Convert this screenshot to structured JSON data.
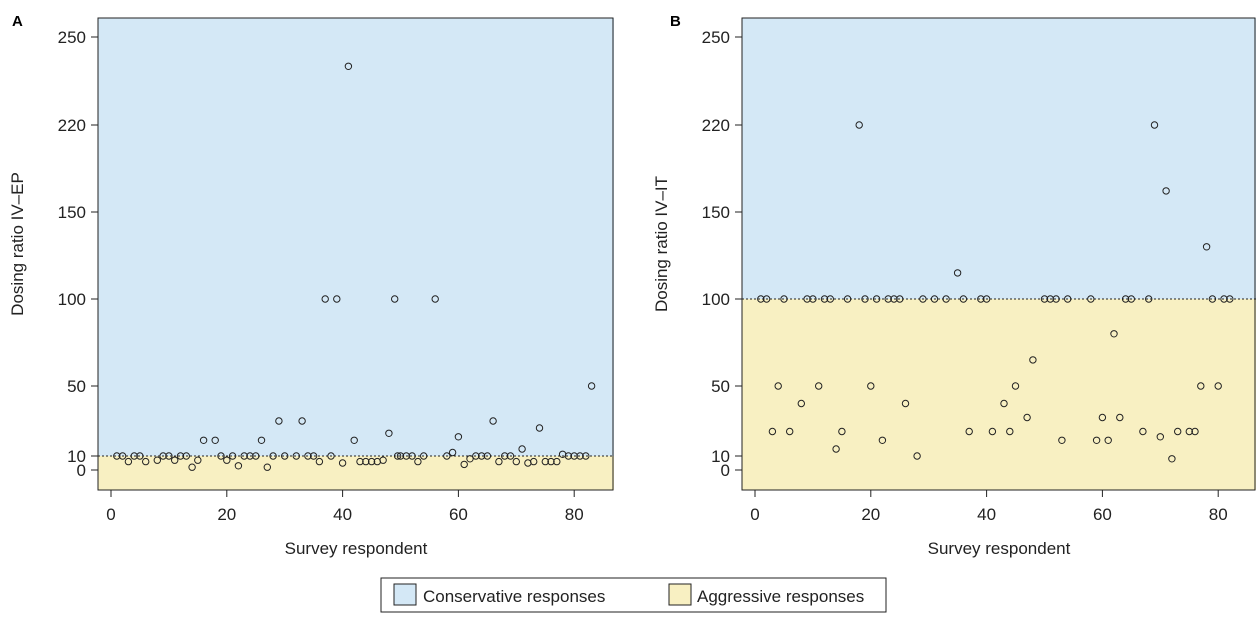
{
  "colors": {
    "conservative": "#d4e8f6",
    "aggressive": "#f8f0c2",
    "marker_stroke": "#222222",
    "axis": "#222222"
  },
  "legend": {
    "conservative_label": "Conservative responses",
    "aggressive_label": "Aggressive responses",
    "placement": "bottom-center"
  },
  "chart_data": [
    {
      "type": "scatter",
      "panel_label": "A",
      "xlabel": "Survey respondent",
      "ylabel": "Dosing ratio IV–EP",
      "xlim": [
        0,
        87
      ],
      "xticks": [
        "0",
        "20",
        "40",
        "60",
        "80"
      ],
      "yticks": [
        "0",
        "10",
        "50",
        "100",
        "150",
        "220",
        "250"
      ],
      "scale_note": "y axis is non-linear: ticks 0, 10, 50, 100, 150, 220, 250",
      "threshold": 10,
      "conservative_region": "above threshold",
      "aggressive_region": "below threshold",
      "points": [
        {
          "x": 1,
          "y": 10
        },
        {
          "x": 2,
          "y": 10
        },
        {
          "x": 3,
          "y": 6
        },
        {
          "x": 4,
          "y": 10
        },
        {
          "x": 5,
          "y": 10
        },
        {
          "x": 6,
          "y": 6
        },
        {
          "x": 8,
          "y": 7
        },
        {
          "x": 9,
          "y": 10
        },
        {
          "x": 10,
          "y": 10
        },
        {
          "x": 11,
          "y": 7
        },
        {
          "x": 12,
          "y": 10
        },
        {
          "x": 13,
          "y": 10
        },
        {
          "x": 14,
          "y": 2
        },
        {
          "x": 15,
          "y": 7
        },
        {
          "x": 16,
          "y": 19
        },
        {
          "x": 18,
          "y": 19
        },
        {
          "x": 19,
          "y": 10
        },
        {
          "x": 20,
          "y": 7
        },
        {
          "x": 21,
          "y": 10
        },
        {
          "x": 22,
          "y": 3
        },
        {
          "x": 23,
          "y": 10
        },
        {
          "x": 24,
          "y": 10
        },
        {
          "x": 25,
          "y": 10
        },
        {
          "x": 26,
          "y": 19
        },
        {
          "x": 27,
          "y": 2
        },
        {
          "x": 28,
          "y": 10
        },
        {
          "x": 29,
          "y": 30
        },
        {
          "x": 30,
          "y": 10
        },
        {
          "x": 32,
          "y": 10
        },
        {
          "x": 33,
          "y": 30
        },
        {
          "x": 34,
          "y": 10
        },
        {
          "x": 35,
          "y": 10
        },
        {
          "x": 36,
          "y": 6
        },
        {
          "x": 37,
          "y": 100
        },
        {
          "x": 38,
          "y": 10
        },
        {
          "x": 39,
          "y": 100
        },
        {
          "x": 40,
          "y": 5
        },
        {
          "x": 41,
          "y": 240
        },
        {
          "x": 42,
          "y": 19
        },
        {
          "x": 43,
          "y": 6
        },
        {
          "x": 44,
          "y": 6
        },
        {
          "x": 45,
          "y": 6
        },
        {
          "x": 46,
          "y": 6
        },
        {
          "x": 47,
          "y": 7
        },
        {
          "x": 48,
          "y": 23
        },
        {
          "x": 49,
          "y": 100
        },
        {
          "x": 49.5,
          "y": 10
        },
        {
          "x": 50,
          "y": 10
        },
        {
          "x": 51,
          "y": 10
        },
        {
          "x": 52,
          "y": 10
        },
        {
          "x": 53,
          "y": 6
        },
        {
          "x": 54,
          "y": 10
        },
        {
          "x": 56,
          "y": 100
        },
        {
          "x": 58,
          "y": 10
        },
        {
          "x": 59,
          "y": 12
        },
        {
          "x": 60,
          "y": 21
        },
        {
          "x": 61,
          "y": 4
        },
        {
          "x": 62,
          "y": 8
        },
        {
          "x": 63,
          "y": 10
        },
        {
          "x": 64,
          "y": 10
        },
        {
          "x": 65,
          "y": 10
        },
        {
          "x": 66,
          "y": 30
        },
        {
          "x": 67,
          "y": 6
        },
        {
          "x": 68,
          "y": 10
        },
        {
          "x": 69,
          "y": 10
        },
        {
          "x": 70,
          "y": 6
        },
        {
          "x": 71,
          "y": 14
        },
        {
          "x": 72,
          "y": 5
        },
        {
          "x": 73,
          "y": 6
        },
        {
          "x": 74,
          "y": 26
        },
        {
          "x": 75,
          "y": 6
        },
        {
          "x": 76,
          "y": 6
        },
        {
          "x": 77,
          "y": 6
        },
        {
          "x": 78,
          "y": 11
        },
        {
          "x": 79,
          "y": 10
        },
        {
          "x": 80,
          "y": 10
        },
        {
          "x": 81,
          "y": 10
        },
        {
          "x": 82,
          "y": 10
        },
        {
          "x": 83,
          "y": 50
        }
      ]
    },
    {
      "type": "scatter",
      "panel_label": "B",
      "xlabel": "Survey respondent",
      "ylabel": "Dosing ratio IV–IT",
      "xlim": [
        0,
        87
      ],
      "xticks": [
        "0",
        "20",
        "40",
        "60",
        "80"
      ],
      "yticks": [
        "0",
        "10",
        "50",
        "100",
        "150",
        "220",
        "250"
      ],
      "scale_note": "y axis is non-linear: ticks 0, 10, 50, 100, 150, 220, 250",
      "threshold": 100,
      "conservative_region": "above threshold",
      "aggressive_region": "below threshold",
      "points": [
        {
          "x": 1,
          "y": 100
        },
        {
          "x": 2,
          "y": 100
        },
        {
          "x": 3,
          "y": 24
        },
        {
          "x": 4,
          "y": 50
        },
        {
          "x": 5,
          "y": 100
        },
        {
          "x": 6,
          "y": 24
        },
        {
          "x": 8,
          "y": 40
        },
        {
          "x": 9,
          "y": 100
        },
        {
          "x": 10,
          "y": 100
        },
        {
          "x": 11,
          "y": 50
        },
        {
          "x": 12,
          "y": 100
        },
        {
          "x": 13,
          "y": 100
        },
        {
          "x": 14,
          "y": 14
        },
        {
          "x": 15,
          "y": 24
        },
        {
          "x": 16,
          "y": 100
        },
        {
          "x": 18,
          "y": 220
        },
        {
          "x": 19,
          "y": 100
        },
        {
          "x": 20,
          "y": 50
        },
        {
          "x": 21,
          "y": 100
        },
        {
          "x": 22,
          "y": 19
        },
        {
          "x": 23,
          "y": 100
        },
        {
          "x": 24,
          "y": 100
        },
        {
          "x": 25,
          "y": 100
        },
        {
          "x": 26,
          "y": 40
        },
        {
          "x": 28,
          "y": 10
        },
        {
          "x": 29,
          "y": 100
        },
        {
          "x": 31,
          "y": 100
        },
        {
          "x": 33,
          "y": 100
        },
        {
          "x": 35,
          "y": 115
        },
        {
          "x": 36,
          "y": 100
        },
        {
          "x": 37,
          "y": 24
        },
        {
          "x": 39,
          "y": 100
        },
        {
          "x": 40,
          "y": 100
        },
        {
          "x": 41,
          "y": 24
        },
        {
          "x": 43,
          "y": 40
        },
        {
          "x": 44,
          "y": 24
        },
        {
          "x": 45,
          "y": 50
        },
        {
          "x": 47,
          "y": 32
        },
        {
          "x": 48,
          "y": 65
        },
        {
          "x": 50,
          "y": 100
        },
        {
          "x": 51,
          "y": 100
        },
        {
          "x": 52,
          "y": 100
        },
        {
          "x": 53,
          "y": 19
        },
        {
          "x": 54,
          "y": 100
        },
        {
          "x": 58,
          "y": 100
        },
        {
          "x": 59,
          "y": 19
        },
        {
          "x": 60,
          "y": 32
        },
        {
          "x": 61,
          "y": 19
        },
        {
          "x": 62,
          "y": 80
        },
        {
          "x": 63,
          "y": 32
        },
        {
          "x": 64,
          "y": 100
        },
        {
          "x": 65,
          "y": 100
        },
        {
          "x": 67,
          "y": 24
        },
        {
          "x": 68,
          "y": 100
        },
        {
          "x": 69,
          "y": 220
        },
        {
          "x": 70,
          "y": 21
        },
        {
          "x": 71,
          "y": 167
        },
        {
          "x": 72,
          "y": 8
        },
        {
          "x": 73,
          "y": 24
        },
        {
          "x": 75,
          "y": 24
        },
        {
          "x": 76,
          "y": 24
        },
        {
          "x": 77,
          "y": 50
        },
        {
          "x": 78,
          "y": 130
        },
        {
          "x": 79,
          "y": 100
        },
        {
          "x": 80,
          "y": 50
        },
        {
          "x": 81,
          "y": 100
        },
        {
          "x": 82,
          "y": 100
        }
      ]
    }
  ]
}
